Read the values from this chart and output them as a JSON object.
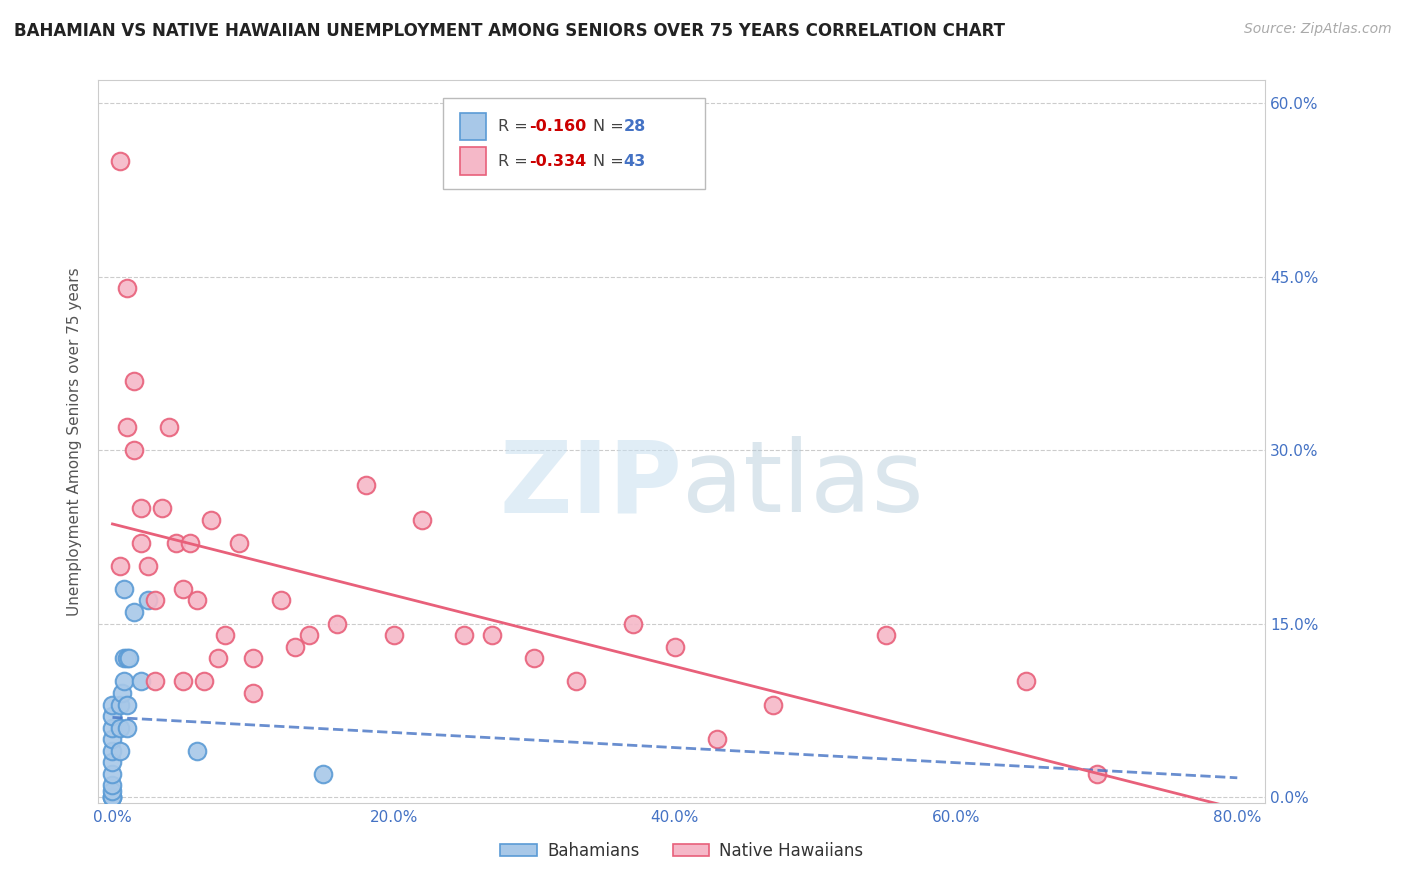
{
  "title": "BAHAMIAN VS NATIVE HAWAIIAN UNEMPLOYMENT AMONG SENIORS OVER 75 YEARS CORRELATION CHART",
  "source": "Source: ZipAtlas.com",
  "ylabel": "Unemployment Among Seniors over 75 years",
  "xlabel_ticks": [
    "0.0%",
    "20.0%",
    "40.0%",
    "60.0%",
    "80.0%"
  ],
  "xlabel_vals": [
    0.0,
    0.2,
    0.4,
    0.6,
    0.8
  ],
  "ylabel_ticks_right": [
    "0.0%",
    "15.0%",
    "30.0%",
    "45.0%",
    "60.0%"
  ],
  "ylabel_vals": [
    0.0,
    0.15,
    0.3,
    0.45,
    0.6
  ],
  "xlim": [
    -0.01,
    0.82
  ],
  "ylim": [
    -0.005,
    0.62
  ],
  "bahamian_color": "#a8c8e8",
  "hawaiian_color": "#f5b8c8",
  "bahamian_edge": "#5b9bd5",
  "hawaiian_edge": "#e8607a",
  "regression_bahamian_color": "#4472c4",
  "regression_hawaiian_color": "#e8607a",
  "legend_R_bahamian": "-0.160",
  "legend_N_bahamian": "28",
  "legend_R_hawaiian": "-0.334",
  "legend_N_hawaiian": "43",
  "bahamian_x": [
    0.0,
    0.0,
    0.0,
    0.0,
    0.0,
    0.0,
    0.0,
    0.0,
    0.0,
    0.0,
    0.0,
    0.0,
    0.005,
    0.005,
    0.005,
    0.007,
    0.008,
    0.008,
    0.008,
    0.01,
    0.01,
    0.01,
    0.012,
    0.015,
    0.02,
    0.025,
    0.06,
    0.15
  ],
  "bahamian_y": [
    0.0,
    0.0,
    0.0,
    0.005,
    0.01,
    0.02,
    0.03,
    0.04,
    0.05,
    0.06,
    0.07,
    0.08,
    0.04,
    0.06,
    0.08,
    0.09,
    0.1,
    0.12,
    0.18,
    0.06,
    0.08,
    0.12,
    0.12,
    0.16,
    0.1,
    0.17,
    0.04,
    0.02
  ],
  "hawaiian_x": [
    0.005,
    0.005,
    0.01,
    0.01,
    0.015,
    0.015,
    0.02,
    0.02,
    0.025,
    0.03,
    0.03,
    0.035,
    0.04,
    0.045,
    0.05,
    0.05,
    0.055,
    0.06,
    0.065,
    0.07,
    0.075,
    0.08,
    0.09,
    0.1,
    0.1,
    0.12,
    0.13,
    0.14,
    0.16,
    0.18,
    0.2,
    0.22,
    0.25,
    0.27,
    0.3,
    0.33,
    0.37,
    0.4,
    0.43,
    0.47,
    0.55,
    0.65,
    0.7
  ],
  "hawaiian_y": [
    0.55,
    0.2,
    0.44,
    0.32,
    0.36,
    0.3,
    0.25,
    0.22,
    0.2,
    0.17,
    0.1,
    0.25,
    0.32,
    0.22,
    0.18,
    0.1,
    0.22,
    0.17,
    0.1,
    0.24,
    0.12,
    0.14,
    0.22,
    0.09,
    0.12,
    0.17,
    0.13,
    0.14,
    0.15,
    0.27,
    0.14,
    0.24,
    0.14,
    0.14,
    0.12,
    0.1,
    0.15,
    0.13,
    0.05,
    0.08,
    0.14,
    0.1,
    0.02
  ],
  "watermark_zip": "ZIP",
  "watermark_atlas": "atlas",
  "background_color": "#ffffff",
  "grid_color": "#cccccc"
}
